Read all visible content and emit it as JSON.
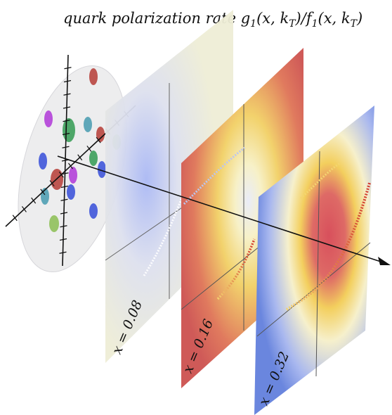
{
  "title": {
    "lead": "quark polarization rate ",
    "g": "g",
    "g_sub": "1",
    "g_args_open": "(x, k",
    "T1": "T",
    "mid": ")/",
    "f": "f",
    "f_sub": "1",
    "f_args_open": "(x, k",
    "T2": "T",
    "close": ")"
  },
  "panels": [
    {
      "label": "x = 0.08",
      "tint": "#ece9cf"
    },
    {
      "label": "x = 0.16",
      "tint": "#d6655a"
    },
    {
      "label": "x = 0.32",
      "tint": "#6d87df"
    }
  ],
  "disk": {
    "dots": [
      {
        "color": "#b8453f"
      },
      {
        "color": "#b340d8"
      },
      {
        "color": "#3c9e5a"
      },
      {
        "color": "#4f9fb3"
      },
      {
        "color": "#b8453f"
      },
      {
        "color": "#8fc05a"
      },
      {
        "color": "#3f55d9"
      },
      {
        "color": "#3c9e5a"
      },
      {
        "color": "#b8453f"
      },
      {
        "color": "#b340d8"
      },
      {
        "color": "#4f9fb3"
      },
      {
        "color": "#3f55d9"
      },
      {
        "color": "#3f55d9"
      },
      {
        "color": "#3f55d9"
      },
      {
        "color": "#8fc05a"
      }
    ]
  }
}
